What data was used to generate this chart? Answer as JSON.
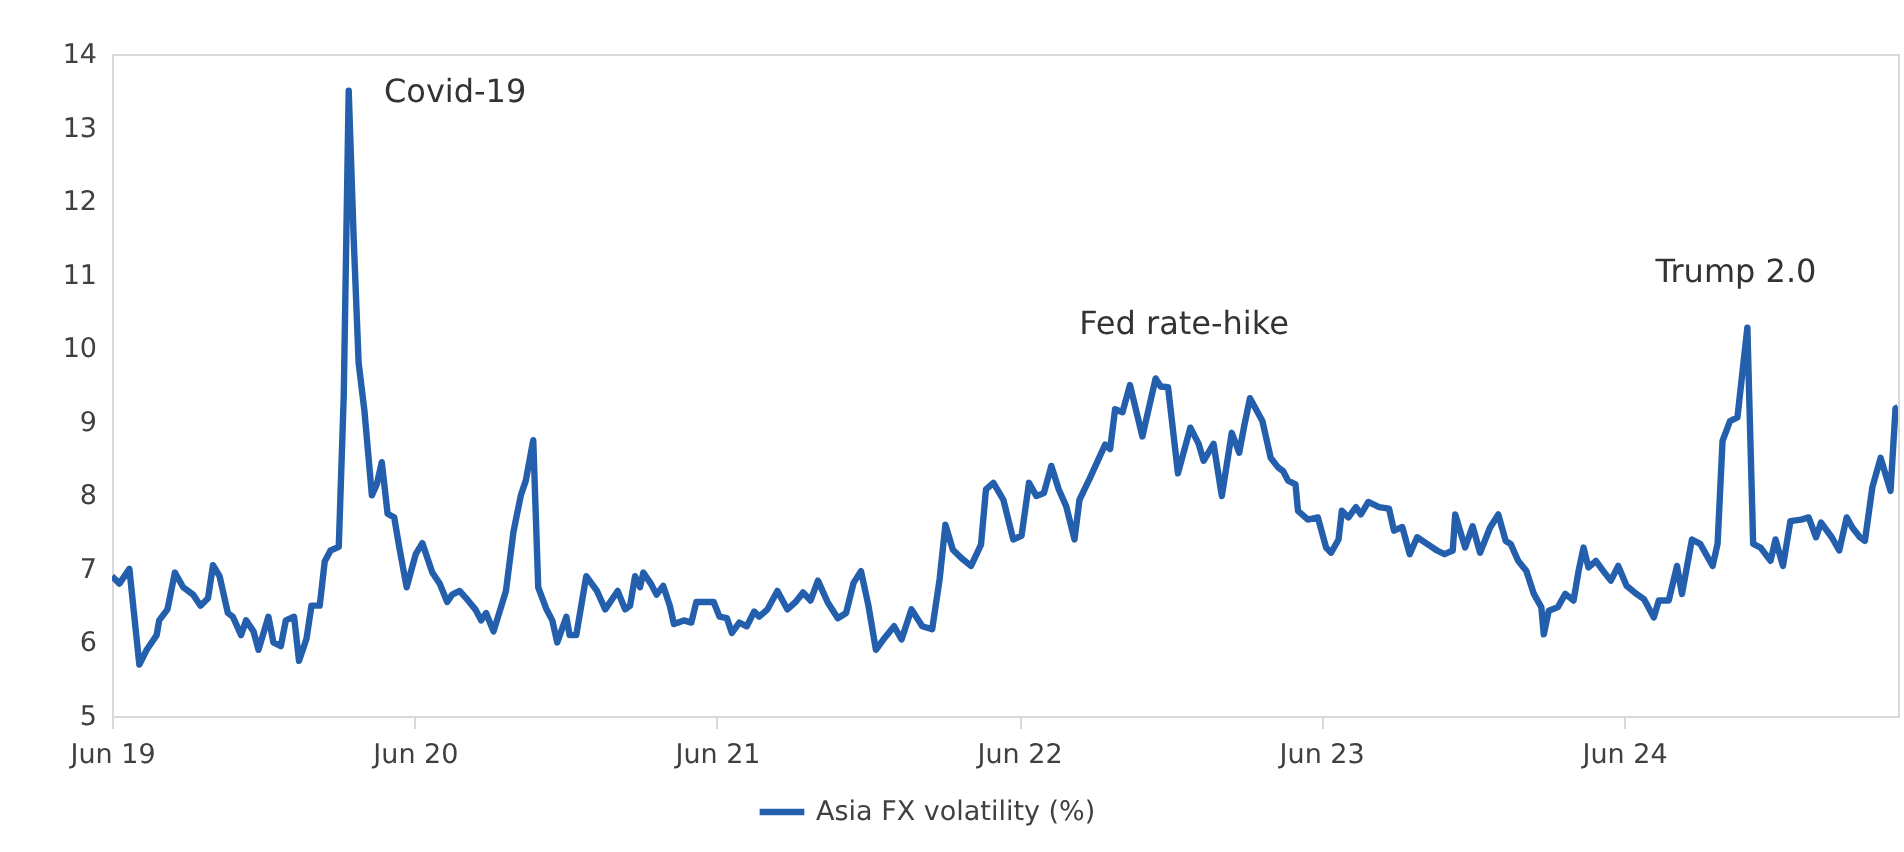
{
  "chart_data": {
    "type": "line",
    "xlim": [
      "2019-06-01",
      "2025-04-28"
    ],
    "ylim": [
      5,
      14
    ],
    "yticks": [
      5,
      6,
      7,
      8,
      9,
      10,
      11,
      12,
      13,
      14
    ],
    "xticks": [
      {
        "value": "2019-06-01",
        "label": "Jun 19"
      },
      {
        "value": "2020-06-01",
        "label": "Jun 20"
      },
      {
        "value": "2021-06-01",
        "label": "Jun 21"
      },
      {
        "value": "2022-06-01",
        "label": "Jun 22"
      },
      {
        "value": "2023-06-01",
        "label": "Jun 23"
      },
      {
        "value": "2024-06-01",
        "label": "Jun 24"
      }
    ],
    "legend": "bottom",
    "annotations": [
      "Covid-19",
      "Fed rate-hike",
      "Trump 2.0"
    ],
    "x": [
      "2019-06-01",
      "2019-06-10",
      "2019-06-22",
      "2019-06-28",
      "2019-07-04",
      "2019-07-13",
      "2019-07-25",
      "2019-07-28",
      "2019-08-07",
      "2019-08-16",
      "2019-08-26",
      "2019-09-07",
      "2019-09-16",
      "2019-09-25",
      "2019-10-01",
      "2019-10-09",
      "2019-10-19",
      "2019-10-25",
      "2019-11-04",
      "2019-11-10",
      "2019-11-19",
      "2019-11-25",
      "2019-12-07",
      "2019-12-13",
      "2019-12-22",
      "2019-12-28",
      "2020-01-07",
      "2020-01-13",
      "2020-01-22",
      "2020-01-28",
      "2020-02-07",
      "2020-02-13",
      "2020-02-20",
      "2020-03-01",
      "2020-03-07",
      "2020-03-13",
      "2020-03-19",
      "2020-03-25",
      "2020-04-01",
      "2020-04-10",
      "2020-04-16",
      "2020-04-22",
      "2020-04-29",
      "2020-05-07",
      "2020-05-13",
      "2020-05-22",
      "2020-06-02",
      "2020-06-10",
      "2020-06-22",
      "2020-07-01",
      "2020-07-10",
      "2020-07-16",
      "2020-07-25",
      "2020-08-02",
      "2020-08-13",
      "2020-08-20",
      "2020-08-26",
      "2020-09-04",
      "2020-09-19",
      "2020-09-28",
      "2020-10-07",
      "2020-10-13",
      "2020-10-22",
      "2020-10-28",
      "2020-11-07",
      "2020-11-14",
      "2020-11-20",
      "2020-12-01",
      "2020-12-05",
      "2020-12-13",
      "2020-12-25",
      "2021-01-07",
      "2021-01-17",
      "2021-02-01",
      "2021-02-10",
      "2021-02-16",
      "2021-02-22",
      "2021-02-28",
      "2021-03-04",
      "2021-03-13",
      "2021-03-20",
      "2021-03-28",
      "2021-04-05",
      "2021-04-10",
      "2021-04-22",
      "2021-05-01",
      "2021-05-07",
      "2021-05-19",
      "2021-05-28",
      "2021-06-04",
      "2021-06-13",
      "2021-06-19",
      "2021-06-28",
      "2021-07-07",
      "2021-07-16",
      "2021-07-22",
      "2021-08-01",
      "2021-08-13",
      "2021-08-25",
      "2021-09-04",
      "2021-09-13",
      "2021-09-22",
      "2021-10-01",
      "2021-10-13",
      "2021-10-25",
      "2021-11-04",
      "2021-11-13",
      "2021-11-22",
      "2021-12-01",
      "2021-12-10",
      "2021-12-19",
      "2022-01-01",
      "2022-01-10",
      "2022-01-22",
      "2022-02-04",
      "2022-02-16",
      "2022-02-25",
      "2022-03-04",
      "2022-03-13",
      "2022-03-25",
      "2022-04-04",
      "2022-04-16",
      "2022-04-22",
      "2022-05-01",
      "2022-05-13",
      "2022-05-25",
      "2022-06-04",
      "2022-06-13",
      "2022-06-22",
      "2022-07-01",
      "2022-07-10",
      "2022-07-19",
      "2022-07-28",
      "2022-08-07",
      "2022-08-13",
      "2022-08-25",
      "2022-09-13",
      "2022-09-19",
      "2022-09-25",
      "2022-10-04",
      "2022-10-13",
      "2022-10-28",
      "2022-11-13",
      "2022-11-19",
      "2022-11-28",
      "2022-12-10",
      "2022-12-25",
      "2023-01-04",
      "2023-01-10",
      "2023-01-22",
      "2023-02-01",
      "2023-02-13",
      "2023-02-22",
      "2023-02-28",
      "2023-03-07",
      "2023-03-22",
      "2023-04-01",
      "2023-04-10",
      "2023-04-16",
      "2023-04-22",
      "2023-05-01",
      "2023-05-04",
      "2023-05-16",
      "2023-05-28",
      "2023-06-07",
      "2023-06-13",
      "2023-06-22",
      "2023-06-26",
      "2023-07-04",
      "2023-07-13",
      "2023-07-19",
      "2023-07-28",
      "2023-08-10",
      "2023-08-22",
      "2023-08-28",
      "2023-09-07",
      "2023-09-16",
      "2023-09-25",
      "2023-10-07",
      "2023-10-19",
      "2023-10-28",
      "2023-11-07",
      "2023-11-10",
      "2023-11-22",
      "2023-12-01",
      "2023-12-10",
      "2023-12-22",
      "2024-01-01",
      "2024-01-10",
      "2024-01-16",
      "2024-01-25",
      "2024-02-04",
      "2024-02-13",
      "2024-02-22",
      "2024-02-25",
      "2024-03-02",
      "2024-03-13",
      "2024-03-22",
      "2024-04-01",
      "2024-04-07",
      "2024-04-13",
      "2024-04-19",
      "2024-04-28",
      "2024-05-07",
      "2024-05-16",
      "2024-05-25",
      "2024-06-04",
      "2024-06-16",
      "2024-06-25",
      "2024-07-07",
      "2024-07-13",
      "2024-07-25",
      "2024-08-04",
      "2024-08-10",
      "2024-08-22",
      "2024-09-01",
      "2024-09-16",
      "2024-09-22",
      "2024-09-28",
      "2024-10-07",
      "2024-10-16",
      "2024-10-28",
      "2024-11-04",
      "2024-11-13",
      "2024-11-25",
      "2024-12-01",
      "2024-12-10",
      "2024-12-19",
      "2025-01-01",
      "2025-01-10",
      "2025-01-19",
      "2025-01-25",
      "2025-02-07",
      "2025-02-16",
      "2025-02-25",
      "2025-03-04",
      "2025-03-13",
      "2025-03-19",
      "2025-03-28",
      "2025-04-07",
      "2025-04-19",
      "2025-04-25",
      "2025-04-28"
    ],
    "series": [
      {
        "name": "Asia FX volatility (%)",
        "color": "#245fad",
        "values": [
          6.9,
          6.8,
          7.0,
          6.35,
          5.7,
          5.9,
          6.1,
          6.3,
          6.45,
          6.95,
          6.75,
          6.65,
          6.5,
          6.6,
          7.05,
          6.9,
          6.4,
          6.35,
          6.1,
          6.3,
          6.15,
          5.9,
          6.35,
          6.0,
          5.95,
          6.3,
          6.35,
          5.75,
          6.05,
          6.5,
          6.5,
          7.1,
          7.25,
          7.3,
          9.35,
          13.5,
          11.5,
          9.8,
          9.15,
          8.0,
          8.15,
          8.45,
          7.75,
          7.7,
          7.3,
          6.75,
          7.2,
          7.35,
          6.95,
          6.8,
          6.55,
          6.65,
          6.7,
          6.6,
          6.45,
          6.3,
          6.4,
          6.15,
          6.7,
          7.5,
          8.0,
          8.2,
          8.75,
          6.75,
          6.45,
          6.3,
          6.0,
          6.35,
          6.1,
          6.1,
          6.9,
          6.7,
          6.45,
          6.7,
          6.45,
          6.5,
          6.9,
          6.75,
          6.95,
          6.8,
          6.65,
          6.77,
          6.5,
          6.25,
          6.3,
          6.27,
          6.55,
          6.55,
          6.55,
          6.35,
          6.33,
          6.13,
          6.27,
          6.22,
          6.42,
          6.35,
          6.45,
          6.7,
          6.45,
          6.55,
          6.68,
          6.57,
          6.84,
          6.54,
          6.33,
          6.4,
          6.81,
          6.97,
          6.5,
          5.9,
          6.04,
          6.22,
          6.04,
          6.45,
          6.22,
          6.18,
          6.86,
          7.6,
          7.26,
          7.13,
          7.04,
          7.33,
          8.08,
          8.17,
          7.94,
          7.4,
          7.45,
          8.17,
          7.99,
          8.03,
          8.4,
          8.08,
          7.85,
          7.4,
          7.94,
          8.22,
          8.69,
          8.63,
          9.17,
          9.13,
          9.5,
          8.8,
          9.59,
          9.48,
          9.47,
          8.3,
          8.92,
          8.7,
          8.47,
          8.7,
          7.99,
          8.85,
          8.58,
          8.94,
          9.32,
          9.01,
          8.51,
          8.38,
          8.33,
          8.2,
          8.15,
          7.79,
          7.67,
          7.7,
          7.29,
          7.22,
          7.4,
          7.79,
          7.7,
          7.84,
          7.74,
          7.91,
          7.84,
          7.82,
          7.52,
          7.57,
          7.2,
          7.43,
          7.34,
          7.25,
          7.2,
          7.25,
          7.74,
          7.29,
          7.58,
          7.22,
          7.56,
          7.74,
          7.38,
          7.34,
          7.11,
          6.97,
          6.66,
          6.48,
          6.11,
          6.43,
          6.48,
          6.66,
          6.57,
          6.97,
          7.29,
          7.02,
          7.11,
          6.97,
          6.84,
          7.04,
          6.77,
          6.66,
          6.59,
          6.34,
          6.57,
          6.57,
          7.04,
          6.66,
          7.4,
          7.34,
          7.04,
          7.34,
          8.74,
          9.01,
          9.06,
          10.28,
          7.34,
          7.29,
          7.11,
          7.4,
          7.04,
          7.65,
          7.67,
          7.7,
          7.43,
          7.63,
          7.43,
          7.25,
          7.7,
          7.56,
          7.43,
          7.38,
          8.11,
          8.51,
          8.06,
          9.18,
          9.2
        ]
      }
    ]
  }
}
